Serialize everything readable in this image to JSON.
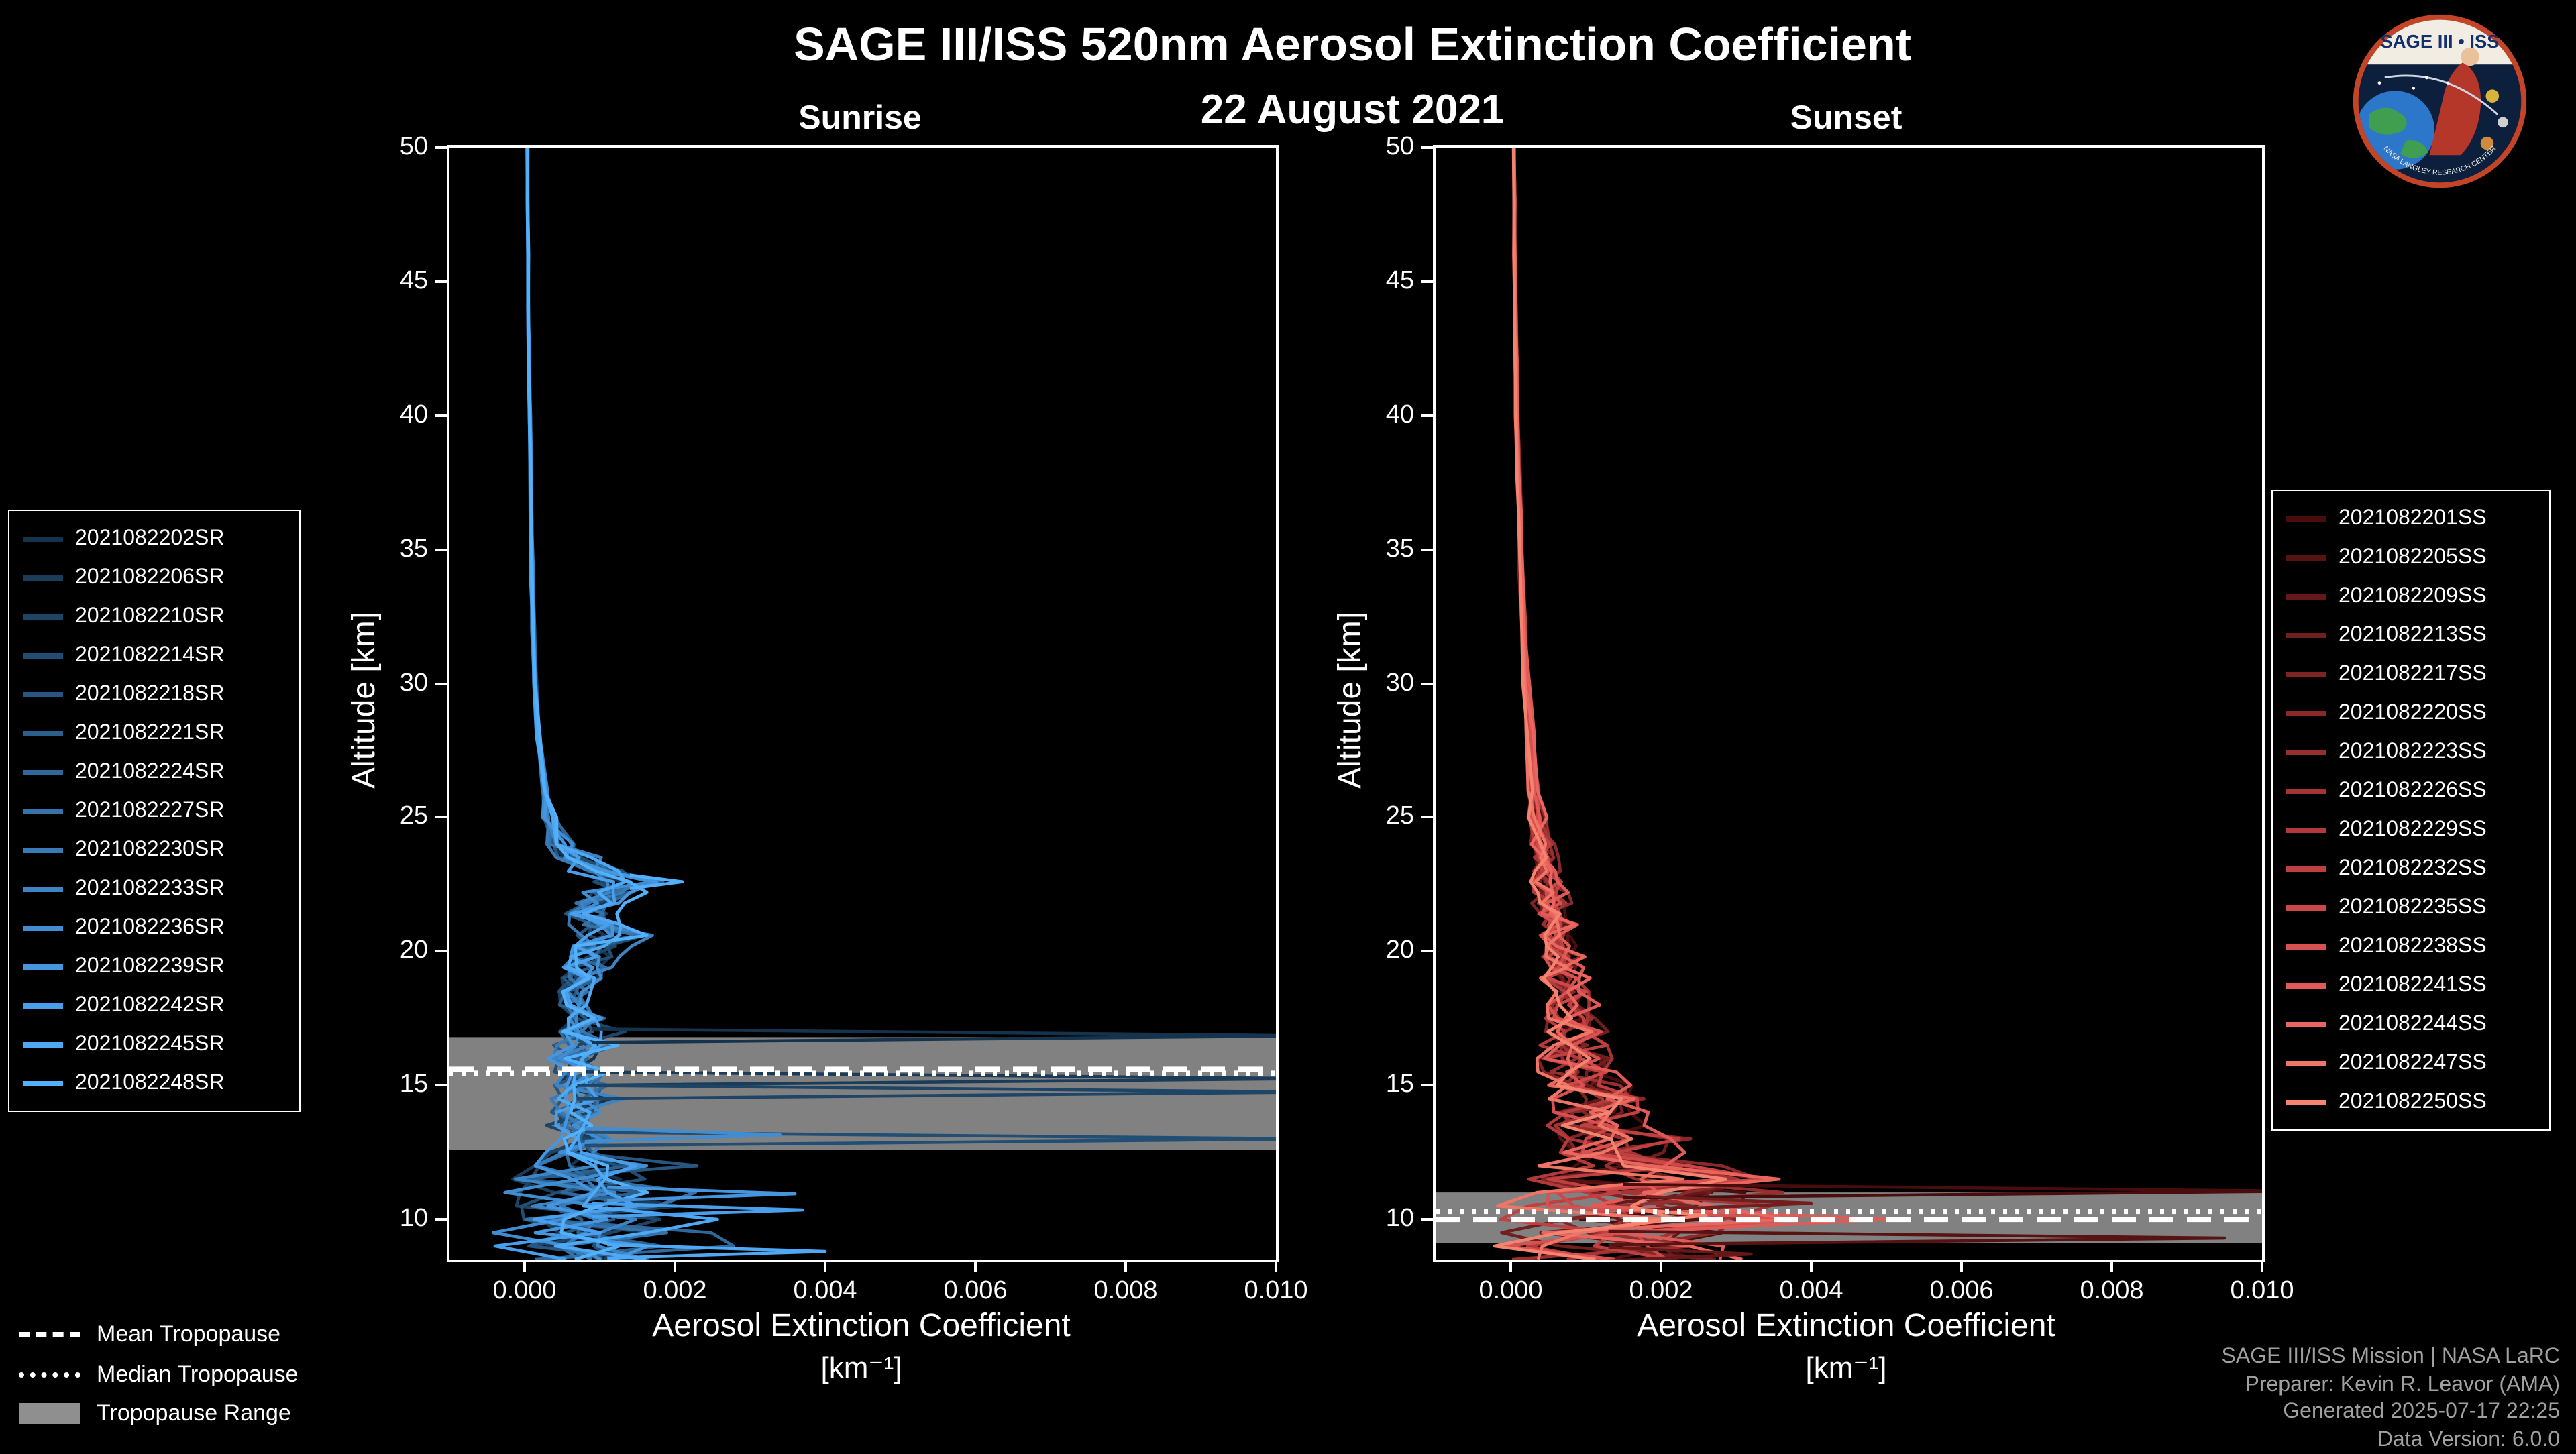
{
  "header": {
    "title": "SAGE III/ISS 520nm Aerosol Extinction Coefficient",
    "date": "22 August 2021"
  },
  "logo": {
    "name": "SAGE III • ISS",
    "ring_text": "NASA LANGLEY RESEARCH CENTER"
  },
  "tropopause_legend": {
    "mean_label": "Mean Tropopause",
    "median_label": "Median Tropopause",
    "range_label": "Tropopause Range",
    "range_color": "#8f8f8f"
  },
  "attribution": {
    "line1": "SAGE III/ISS Mission | NASA LaRC",
    "line2": "Preparer: Kevin R. Leavor (AMA)",
    "line3": "Generated 2025-07-17 22:25",
    "line4": "Data Version: 6.0.0"
  },
  "chart_data": [
    {
      "type": "line",
      "panel": "sunrise",
      "title": "Sunrise",
      "xlabel": "Aerosol Extinction Coefficient",
      "xlabel_units": "[km⁻¹]",
      "ylabel": "Altitude [km]",
      "xlim": [
        -0.001,
        0.01
      ],
      "ylim": [
        8.5,
        50
      ],
      "xticks": [
        0,
        0.002,
        0.004,
        0.006,
        0.008,
        0.01
      ],
      "xtick_labels": [
        "0.000",
        "0.002",
        "0.004",
        "0.006",
        "0.008",
        "0.010"
      ],
      "yticks": [
        10,
        15,
        20,
        25,
        30,
        35,
        40,
        45,
        50
      ],
      "grid": false,
      "legend_position": "left-outside",
      "tropopause": {
        "mean_km": 15.6,
        "median_km": 15.45,
        "range_km": [
          12.6,
          16.8
        ]
      },
      "profile_altitudes_km": [
        50,
        48,
        46,
        44,
        42,
        40,
        38,
        36,
        34,
        32,
        30,
        28,
        26,
        25,
        24,
        23.5,
        23,
        22.6,
        22.2,
        21.8,
        21.4,
        21,
        20.6,
        20.2,
        19.8,
        19.4,
        19,
        18.5,
        18,
        17.5,
        17,
        16.5,
        16,
        15.5,
        15,
        14.5,
        14,
        13.5,
        13,
        12.5,
        12,
        11.5,
        11,
        10.5,
        10,
        9.5,
        9,
        8.5
      ],
      "median_profile_extinction": [
        4e-05,
        4e-05,
        5e-05,
        5e-05,
        6e-05,
        7e-05,
        8e-05,
        9e-05,
        0.0001,
        0.00012,
        0.00015,
        0.0002,
        0.00028,
        0.00035,
        0.0005,
        0.0007,
        0.001,
        0.0014,
        0.0012,
        0.001,
        0.0009,
        0.001,
        0.0012,
        0.001,
        0.0009,
        0.0008,
        0.0008,
        0.0007,
        0.0007,
        0.0008,
        0.0009,
        0.0008,
        0.0006,
        0.0008,
        0.0007,
        0.0009,
        0.0007,
        0.0006,
        0.0008,
        0.0006,
        0.0007,
        0.0009,
        0.0011,
        0.0009,
        0.0007,
        0.0009,
        0.0011,
        0.0009
      ],
      "series": [
        {
          "name": "2021082202SR",
          "color": "#16334d",
          "seed": 11
        },
        {
          "name": "2021082206SR",
          "color": "#1a3c59",
          "seed": 12
        },
        {
          "name": "2021082210SR",
          "color": "#1e4566",
          "seed": 13
        },
        {
          "name": "2021082214SR",
          "color": "#224e73",
          "seed": 14
        },
        {
          "name": "2021082218SR",
          "color": "#275781",
          "seed": 15
        },
        {
          "name": "2021082221SR",
          "color": "#2b608e",
          "seed": 16
        },
        {
          "name": "2021082224SR",
          "color": "#2f699b",
          "seed": 17
        },
        {
          "name": "2021082227SR",
          "color": "#3472a9",
          "seed": 18
        },
        {
          "name": "2021082230SR",
          "color": "#387bb6",
          "seed": 19
        },
        {
          "name": "2021082233SR",
          "color": "#3c84c3",
          "seed": 20
        },
        {
          "name": "2021082236SR",
          "color": "#418dd1",
          "seed": 21
        },
        {
          "name": "2021082239SR",
          "color": "#4596de",
          "seed": 22
        },
        {
          "name": "2021082242SR",
          "color": "#499feb",
          "seed": 23
        },
        {
          "name": "2021082245SR",
          "color": "#4ea8f3",
          "seed": 24
        },
        {
          "name": "2021082248SR",
          "color": "#52b1fa",
          "seed": 25
        }
      ],
      "excursions": [
        {
          "series_index": 0,
          "altitude_km": 16.85,
          "extinction_max": 0.0105
        },
        {
          "series_index": 1,
          "altitude_km": 15.25,
          "extinction_max": 0.0105
        },
        {
          "series_index": 2,
          "altitude_km": 14.75,
          "extinction_max": 0.0105
        },
        {
          "series_index": 3,
          "altitude_km": 13.0,
          "extinction_max": 0.0105
        },
        {
          "series_index": 10,
          "altitude_km": 13.15,
          "extinction_max": 0.0034
        },
        {
          "series_index": 11,
          "altitude_km": 10.95,
          "extinction_max": 0.0036
        },
        {
          "series_index": 12,
          "altitude_km": 10.35,
          "extinction_max": 0.0037
        },
        {
          "series_index": 13,
          "altitude_km": 8.8,
          "extinction_max": 0.004
        },
        {
          "series_index": 14,
          "altitude_km": 22.6,
          "extinction_max": 0.0021
        }
      ]
    },
    {
      "type": "line",
      "panel": "sunset",
      "title": "Sunset",
      "xlabel": "Aerosol Extinction Coefficient",
      "xlabel_units": "[km⁻¹]",
      "ylabel": "Altitude [km]",
      "xlim": [
        -0.001,
        0.01
      ],
      "ylim": [
        8.5,
        50
      ],
      "xticks": [
        0,
        0.002,
        0.004,
        0.006,
        0.008,
        0.01
      ],
      "xtick_labels": [
        "0.000",
        "0.002",
        "0.004",
        "0.006",
        "0.008",
        "0.010"
      ],
      "yticks": [
        10,
        15,
        20,
        25,
        30,
        35,
        40,
        45,
        50
      ],
      "grid": false,
      "legend_position": "right-outside",
      "tropopause": {
        "mean_km": 10.0,
        "median_km": 10.3,
        "range_km": [
          9.1,
          11.0
        ]
      },
      "profile_altitudes_km": [
        50,
        48,
        46,
        44,
        42,
        40,
        38,
        36,
        34,
        32,
        30,
        28,
        26,
        25,
        24,
        23.5,
        23,
        22.6,
        22.2,
        21.8,
        21.4,
        21,
        20.6,
        20.2,
        19.8,
        19.4,
        19,
        18.5,
        18,
        17.5,
        17,
        16.5,
        16,
        15.5,
        15,
        14.5,
        14,
        13.5,
        13,
        12.5,
        12,
        11.5,
        11,
        10.5,
        10,
        9.5,
        9,
        8.5
      ],
      "median_profile_extinction": [
        4e-05,
        5e-05,
        5e-05,
        6e-05,
        7e-05,
        8e-05,
        0.0001,
        0.00012,
        0.00014,
        0.00017,
        0.0002,
        0.00025,
        0.0003,
        0.00035,
        0.0004,
        0.00042,
        0.00045,
        0.00047,
        0.0005,
        0.00052,
        0.00055,
        0.00058,
        0.0006,
        0.00062,
        0.00065,
        0.00068,
        0.0007,
        0.00072,
        0.00075,
        0.0008,
        0.00085,
        0.0008,
        0.00085,
        0.0009,
        0.001,
        0.0011,
        0.0011,
        0.0012,
        0.0014,
        0.0013,
        0.0015,
        0.0017,
        0.0015,
        0.0018,
        0.0016,
        0.0013,
        0.0012,
        0.0013
      ],
      "series": [
        {
          "name": "2021082201SS",
          "color": "#4a0d0d",
          "seed": 31
        },
        {
          "name": "2021082205SS",
          "color": "#571313",
          "seed": 32
        },
        {
          "name": "2021082209SS",
          "color": "#641818",
          "seed": 33
        },
        {
          "name": "2021082213SS",
          "color": "#711e1e",
          "seed": 34
        },
        {
          "name": "2021082217SS",
          "color": "#7e2424",
          "seed": 35
        },
        {
          "name": "2021082220SS",
          "color": "#8b2929",
          "seed": 36
        },
        {
          "name": "2021082223SS",
          "color": "#982f2f",
          "seed": 37
        },
        {
          "name": "2021082226SS",
          "color": "#a53434",
          "seed": 38
        },
        {
          "name": "2021082229SS",
          "color": "#b23a3a",
          "seed": 39
        },
        {
          "name": "2021082232SS",
          "color": "#bf4040",
          "seed": 40
        },
        {
          "name": "2021082235SS",
          "color": "#cc4848",
          "seed": 41
        },
        {
          "name": "2021082238SS",
          "color": "#d65150",
          "seed": 42
        },
        {
          "name": "2021082241SS",
          "color": "#e05b57",
          "seed": 43
        },
        {
          "name": "2021082244SS",
          "color": "#e9655e",
          "seed": 44
        },
        {
          "name": "2021082247SS",
          "color": "#ef7567",
          "seed": 45
        },
        {
          "name": "2021082250SS",
          "color": "#f48470",
          "seed": 46
        }
      ],
      "excursions": [
        {
          "series_index": 0,
          "altitude_km": 11.05,
          "extinction_max": 0.0105
        },
        {
          "series_index": 1,
          "altitude_km": 9.3,
          "extinction_max": 0.0095
        },
        {
          "series_index": 2,
          "altitude_km": 8.7,
          "extinction_max": 0.0032
        },
        {
          "series_index": 3,
          "altitude_km": 10.6,
          "extinction_max": 0.004
        },
        {
          "series_index": 15,
          "altitude_km": 10.15,
          "extinction_max": 0.0026
        }
      ]
    }
  ]
}
